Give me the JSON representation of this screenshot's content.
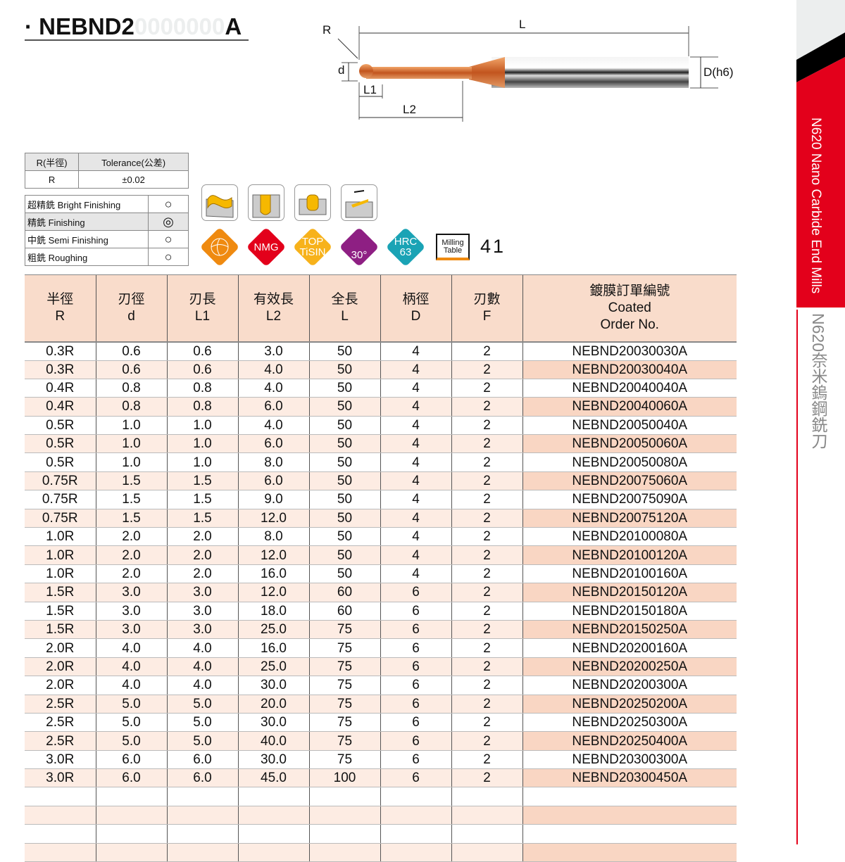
{
  "header": {
    "bullet": "·",
    "prefix": "NEBND2",
    "ghost": "0000000",
    "suffix": "A"
  },
  "diagram": {
    "labels": {
      "R": "R",
      "L": "L",
      "d": "d",
      "L1": "L1",
      "L2": "L2",
      "D": "D(h6)"
    }
  },
  "tolerance_table": {
    "headers": [
      "R(半徑)",
      "Tolerance(公差)"
    ],
    "row": [
      "R",
      "±0.02"
    ]
  },
  "finishing": [
    {
      "label": "超精銑 Bright Finishing",
      "mark": "○",
      "selected": false
    },
    {
      "label": "精銑 Finishing",
      "mark": "◎",
      "selected": true
    },
    {
      "label": "中銑 Semi Finishing",
      "mark": "○",
      "selected": false
    },
    {
      "label": "粗銑 Roughing",
      "mark": "○",
      "selected": false
    }
  ],
  "application_icons": [
    "contour-milling-icon",
    "slotting-icon",
    "helical-milling-icon",
    "ramping-icon"
  ],
  "badges": [
    {
      "name": "4-flute-badge",
      "text": "",
      "color": "#ef8a10"
    },
    {
      "name": "nmg-badge",
      "text": "NMG",
      "color": "#e3001b"
    },
    {
      "name": "coating-badge",
      "text": "TOP\nTiSIN",
      "color": "#f7b21b"
    },
    {
      "name": "helix-badge",
      "text": "30°",
      "color": "#8e1f83"
    },
    {
      "name": "hrc-badge",
      "text": "HRC\n63",
      "color": "#1aa3b5"
    }
  ],
  "milling_table": {
    "line1": "Milling",
    "line2": "Table",
    "page": "41"
  },
  "sidebar": {
    "en": "N620 Nano Carbide End Mills",
    "zh": "N620奈米鎢鋼銑刀",
    "accent": "#e3001b"
  },
  "table": {
    "headers": [
      [
        "半徑",
        "R"
      ],
      [
        "刃徑",
        "d"
      ],
      [
        "刃長",
        "L1"
      ],
      [
        "有效長",
        "L2"
      ],
      [
        "全長",
        "L"
      ],
      [
        "柄徑",
        "D"
      ],
      [
        "刃數",
        "F"
      ],
      [
        "鍍膜訂單編號",
        "Coated",
        "Order No."
      ]
    ],
    "rows": [
      [
        "0.3R",
        "0.6",
        "0.6",
        "3.0",
        "50",
        "4",
        "2",
        "NEBND20030030A"
      ],
      [
        "0.3R",
        "0.6",
        "0.6",
        "4.0",
        "50",
        "4",
        "2",
        "NEBND20030040A"
      ],
      [
        "0.4R",
        "0.8",
        "0.8",
        "4.0",
        "50",
        "4",
        "2",
        "NEBND20040040A"
      ],
      [
        "0.4R",
        "0.8",
        "0.8",
        "6.0",
        "50",
        "4",
        "2",
        "NEBND20040060A"
      ],
      [
        "0.5R",
        "1.0",
        "1.0",
        "4.0",
        "50",
        "4",
        "2",
        "NEBND20050040A"
      ],
      [
        "0.5R",
        "1.0",
        "1.0",
        "6.0",
        "50",
        "4",
        "2",
        "NEBND20050060A"
      ],
      [
        "0.5R",
        "1.0",
        "1.0",
        "8.0",
        "50",
        "4",
        "2",
        "NEBND20050080A"
      ],
      [
        "0.75R",
        "1.5",
        "1.5",
        "6.0",
        "50",
        "4",
        "2",
        "NEBND20075060A"
      ],
      [
        "0.75R",
        "1.5",
        "1.5",
        "9.0",
        "50",
        "4",
        "2",
        "NEBND20075090A"
      ],
      [
        "0.75R",
        "1.5",
        "1.5",
        "12.0",
        "50",
        "4",
        "2",
        "NEBND20075120A"
      ],
      [
        "1.0R",
        "2.0",
        "2.0",
        "8.0",
        "50",
        "4",
        "2",
        "NEBND20100080A"
      ],
      [
        "1.0R",
        "2.0",
        "2.0",
        "12.0",
        "50",
        "4",
        "2",
        "NEBND20100120A"
      ],
      [
        "1.0R",
        "2.0",
        "2.0",
        "16.0",
        "50",
        "4",
        "2",
        "NEBND20100160A"
      ],
      [
        "1.5R",
        "3.0",
        "3.0",
        "12.0",
        "60",
        "6",
        "2",
        "NEBND20150120A"
      ],
      [
        "1.5R",
        "3.0",
        "3.0",
        "18.0",
        "60",
        "6",
        "2",
        "NEBND20150180A"
      ],
      [
        "1.5R",
        "3.0",
        "3.0",
        "25.0",
        "75",
        "6",
        "2",
        "NEBND20150250A"
      ],
      [
        "2.0R",
        "4.0",
        "4.0",
        "16.0",
        "75",
        "6",
        "2",
        "NEBND20200160A"
      ],
      [
        "2.0R",
        "4.0",
        "4.0",
        "25.0",
        "75",
        "6",
        "2",
        "NEBND20200250A"
      ],
      [
        "2.0R",
        "4.0",
        "4.0",
        "30.0",
        "75",
        "6",
        "2",
        "NEBND20200300A"
      ],
      [
        "2.5R",
        "5.0",
        "5.0",
        "20.0",
        "75",
        "6",
        "2",
        "NEBND20250200A"
      ],
      [
        "2.5R",
        "5.0",
        "5.0",
        "30.0",
        "75",
        "6",
        "2",
        "NEBND20250300A"
      ],
      [
        "2.5R",
        "5.0",
        "5.0",
        "40.0",
        "75",
        "6",
        "2",
        "NEBND20250400A"
      ],
      [
        "3.0R",
        "6.0",
        "6.0",
        "30.0",
        "75",
        "6",
        "2",
        "NEBND20300300A"
      ],
      [
        "3.0R",
        "6.0",
        "6.0",
        "45.0",
        "100",
        "6",
        "2",
        "NEBND20300450A"
      ]
    ],
    "empty_rows": 4
  }
}
